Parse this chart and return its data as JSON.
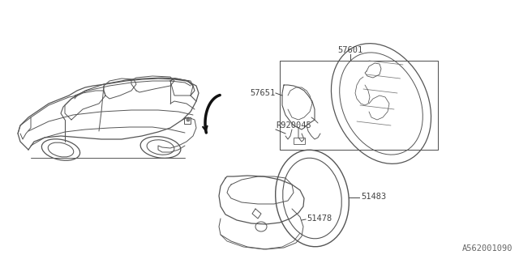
{
  "bg_color": "#ffffff",
  "line_color": "#555555",
  "text_color": "#444444",
  "diagram_id": "A562001090",
  "font_size": 7.5,
  "font_family": "monospace",
  "part_numbers": [
    "57601",
    "57651",
    "R920045",
    "51483",
    "51478"
  ]
}
